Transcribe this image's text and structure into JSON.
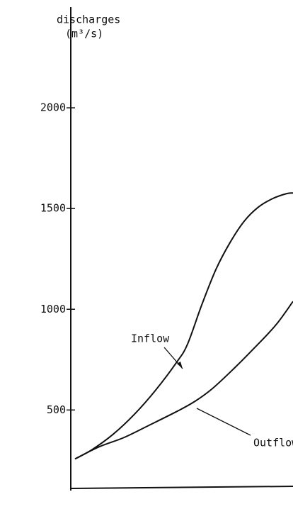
{
  "chart_data": {
    "type": "line",
    "y_label": "discharges",
    "y_unit": "(m³/s)",
    "annotations": [
      "Inflow",
      "Outflow"
    ],
    "ylim": [
      100,
      2500
    ],
    "yticks": [
      500,
      1000,
      1500,
      2000
    ],
    "xlim": [
      0,
      314
    ],
    "series": [
      {
        "name": "Inflow",
        "color": "#111111",
        "x": [
          6,
          30,
          60,
          90,
          120,
          150,
          165,
          185,
          205,
          225,
          245,
          265,
          285,
          305,
          314
        ],
        "values": [
          257,
          303,
          380,
          479,
          599,
          739,
          827,
          1021,
          1197,
          1331,
          1437,
          1507,
          1549,
          1574,
          1577
        ]
      },
      {
        "name": "Outflow",
        "color": "#111111",
        "x": [
          6,
          40,
          75,
          110,
          150,
          175,
          200,
          230,
          260,
          290,
          314
        ],
        "values": [
          257,
          317,
          363,
          423,
          493,
          542,
          606,
          704,
          810,
          923,
          1039
        ]
      }
    ]
  }
}
